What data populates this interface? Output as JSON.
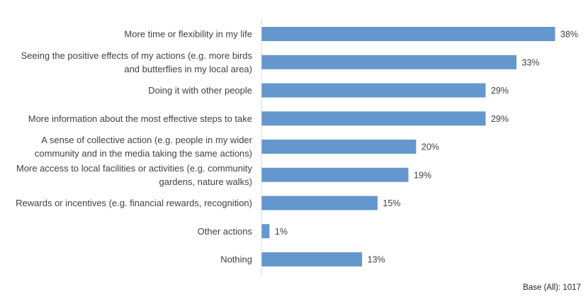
{
  "chart_data": {
    "type": "bar",
    "orientation": "horizontal",
    "categories": [
      "More time or flexibility in my life",
      "Seeing the positive effects of my actions (e.g. more birds and butterflies in my local area)",
      "Doing it with other people",
      "More information about the most effective steps to take",
      "A sense of collective action (e.g. people in my wider community and in the media taking the same actions)",
      "More access to local facilities or activities (e.g. community gardens, nature walks)",
      "Rewards or incentives (e.g. financial rewards, recognition)",
      "Other actions",
      "Nothing"
    ],
    "category_lines": [
      [
        "More time or flexibility in my life"
      ],
      [
        "Seeing the positive effects of my actions (e.g. more birds",
        "and butterflies in my local area)"
      ],
      [
        "Doing it with other people"
      ],
      [
        "More information about the most effective steps to take"
      ],
      [
        "A sense of collective action (e.g. people in my wider",
        "community and in the media taking the same actions)"
      ],
      [
        "More access to local facilities or activities (e.g. community",
        "gardens, nature walks)"
      ],
      [
        "Rewards or incentives (e.g. financial rewards, recognition)"
      ],
      [
        "Other actions"
      ],
      [
        "Nothing"
      ]
    ],
    "values": [
      38,
      33,
      29,
      29,
      20,
      19,
      15,
      1,
      13
    ],
    "value_labels": [
      "38%",
      "33%",
      "29%",
      "29%",
      "20%",
      "19%",
      "15%",
      "1%",
      "13%"
    ],
    "xlim": [
      0,
      38
    ],
    "grid": false,
    "legend": "none",
    "colors": {
      "bar": "#6497cd",
      "axis": "#d9d9d9",
      "text": "#404040"
    }
  },
  "footnote": "Base (All): 1017"
}
